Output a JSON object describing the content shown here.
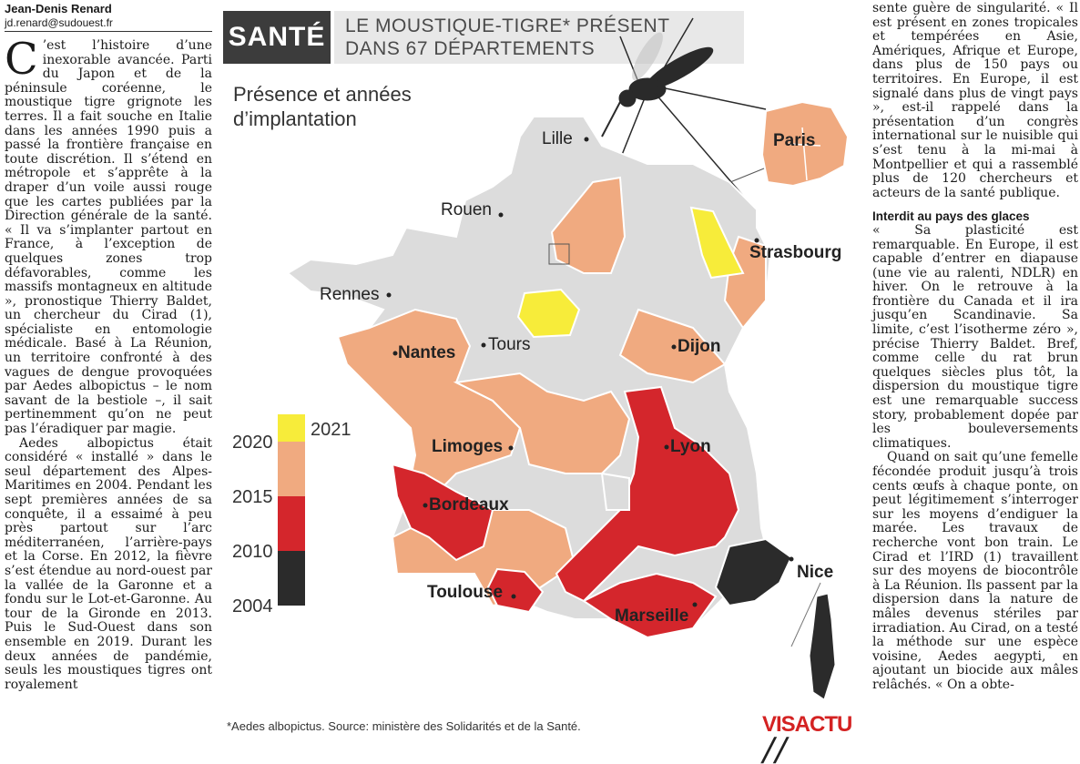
{
  "left_column": {
    "author": "Jean-Denis Renard",
    "email": "jd.renard@sudouest.fr",
    "dropcap": "C",
    "p1": "’est l’histoire d’une inexorable avancée. Parti du Japon et de la péninsule coréenne, le moustique tigre grignote les terres. Il a fait souche en Italie dans les années 1990 puis a passé la frontière française en toute discrétion. Il s’étend en métropole et s’apprête à la draper d’un voile aussi rouge que les cartes publiées par la Direction générale de la santé. « Il va s’implanter partout en France, à l’exception de quelques zones trop défavorables, comme les massifs montagneux en altitude », pronostique Thierry Baldet, un chercheur du Cirad (1), spécialiste en entomologie médicale. Basé à La Réunion, un territoire confronté à des vagues de dengue provoquées par Aedes albopictus – le nom savant de la bestiole –, il sait pertinemment qu’on ne peut pas l’éradiquer par magie.",
    "p2": "Aedes albopictus était considéré « installé » dans le seul département des Alpes-Maritimes en 2004. Pendant les sept premières années de sa conquête, il a essaimé à peu près partout sur l’arc méditerranéen, l’arrière-pays et la Corse. En 2012, la fièvre s’est étendue au nord-ouest par la vallée de la Garonne et a fondu sur le Lot-et-Garonne. Au tour de la Gironde en 2013. Puis le Sud-Ouest dans son ensemble en 2019. Durant les deux années de pandémie, seuls les moustiques tigres ont royalement"
  },
  "right_column": {
    "p1": "sente guère de singularité. « Il est présent en zones tropicales et tempérées en Asie, Amériques, Afrique et Europe, dans plus de 150 pays ou territoires. En Europe, il est signalé dans plus de vingt pays », est-il rappelé dans la présentation d’un congrès international sur le nuisible qui s’est tenu à la mi-mai à Montpellier et qui a rassemblé plus de 120 chercheurs et acteurs de la santé publique.",
    "subhead": "Interdit au pays des glaces",
    "p2": "« Sa plasticité est remarquable. En Europe, il est capable d’entrer en diapause (une vie au ralenti, NDLR) en hiver. On le retrouve à la frontière du Canada et il ira jusqu’en Scandinavie. Sa limite, c’est l’isotherme zéro », précise Thierry Baldet. Bref, comme celle du rat brun quelques siècles plus tôt, la dispersion du moustique tigre est une remarquable success story, probablement dopée par les bouleversements climatiques.",
    "p3": "Quand on sait qu’une femelle fécondée produit jusqu’à trois cents œufs à chaque ponte, on peut légitimement s’interroger sur les moyens d’endiguer la marée. Les travaux de recherche vont bon train. Le Cirad et l’IRD (1) travaillent sur des moyens de biocontrôle à La Réunion. Ils passent par la dispersion dans la nature de mâles devenus stériles par irradiation. Au Cirad, on a testé la méthode sur une espèce voisine, Aedes aegypti, en ajoutant un biocide aux mâles relâchés. « On a obte-"
  },
  "figure": {
    "section": "SANTÉ",
    "title_line1": "LE MOUSTIQUE-TIGRE* PRÉSENT",
    "title_line2": "DANS 67 DÉPARTEMENTS",
    "subtitle_line1": "Présence et années",
    "subtitle_line2": "d’implantation",
    "source": "*Aedes albopictus. Source: ministère des Solidarités et de la Santé.",
    "logo_main": "VISACTU",
    "logo_mark": "╱╱",
    "legend": {
      "labels": [
        "2021",
        "2020",
        "2015",
        "2010",
        "2004"
      ],
      "colors": {
        "y2021": "#f7ec3a",
        "y2020": "#f0aa80",
        "y2015": "#e07060",
        "y2010": "#d4262c",
        "y2004": "#2b2b2b",
        "absent": "#dcdcdc"
      }
    },
    "cities": {
      "lille": "Lille",
      "rouen": "Rouen",
      "paris": "Paris",
      "strasbourg": "Strasbourg",
      "rennes": "Rennes",
      "nantes": "Nantes",
      "tours": "Tours",
      "dijon": "Dijon",
      "limoges": "Limoges",
      "lyon": "Lyon",
      "bordeaux": "Bordeaux",
      "toulouse": "Toulouse",
      "marseille": "Marseille",
      "nice": "Nice"
    }
  }
}
